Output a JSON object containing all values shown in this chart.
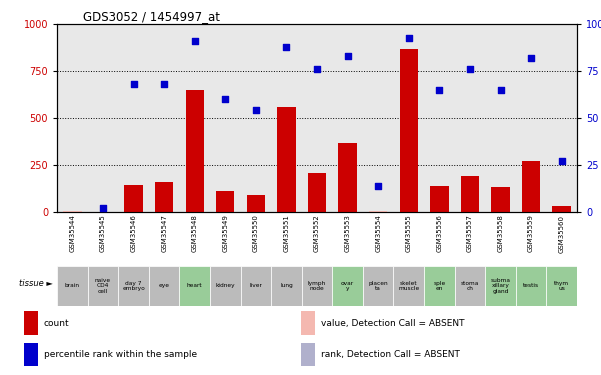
{
  "title": "GDS3052 / 1454997_at",
  "samples": [
    "GSM35544",
    "GSM35545",
    "GSM35546",
    "GSM35547",
    "GSM35548",
    "GSM35549",
    "GSM35550",
    "GSM35551",
    "GSM35552",
    "GSM35553",
    "GSM35554",
    "GSM35555",
    "GSM35556",
    "GSM35557",
    "GSM35558",
    "GSM35559",
    "GSM35560"
  ],
  "bar_values": [
    5,
    2,
    145,
    160,
    650,
    110,
    90,
    560,
    210,
    370,
    5,
    870,
    140,
    190,
    135,
    270,
    30
  ],
  "bar_absent": [
    true,
    true,
    false,
    false,
    false,
    false,
    false,
    false,
    false,
    false,
    true,
    false,
    false,
    false,
    false,
    false,
    false
  ],
  "scatter_values": [
    null,
    20,
    680,
    680,
    910,
    600,
    545,
    880,
    760,
    830,
    140,
    930,
    650,
    760,
    650,
    820,
    270
  ],
  "scatter_absent": [
    true,
    false,
    false,
    false,
    false,
    false,
    false,
    false,
    false,
    false,
    false,
    false,
    false,
    false,
    false,
    false,
    false
  ],
  "tissues": [
    "brain",
    "naive\nCD4\ncell",
    "day 7\nembryo",
    "eye",
    "heart",
    "kidney",
    "liver",
    "lung",
    "lymph\nnode",
    "ovar\ny",
    "placen\nta",
    "skelet\nmuscle",
    "sple\nen",
    "stoma\nch",
    "subma\nxillary\ngland",
    "testis",
    "thym\nus"
  ],
  "tissue_green": [
    false,
    false,
    false,
    false,
    true,
    false,
    false,
    false,
    false,
    true,
    false,
    false,
    true,
    false,
    true,
    true,
    true
  ],
  "ylim_left": [
    0,
    1000
  ],
  "ylim_right": [
    0,
    100
  ],
  "yticks_left": [
    0,
    250,
    500,
    750,
    1000
  ],
  "yticks_right": [
    0,
    25,
    50,
    75,
    100
  ],
  "bar_color": "#cc0000",
  "bar_absent_color": "#f4b8b0",
  "scatter_color": "#0000cc",
  "scatter_absent_color": "#b0b0cc",
  "bg_color": "#e8e8e8",
  "tissue_bg_green": "#99cc99",
  "tissue_bg_gray": "#bbbbbb",
  "xticklabel_bg": "#cccccc",
  "legend_items": [
    {
      "label": "count",
      "color": "#cc0000"
    },
    {
      "label": "percentile rank within the sample",
      "color": "#0000cc"
    },
    {
      "label": "value, Detection Call = ABSENT",
      "color": "#f4b8b0"
    },
    {
      "label": "rank, Detection Call = ABSENT",
      "color": "#b0b0cc"
    }
  ]
}
